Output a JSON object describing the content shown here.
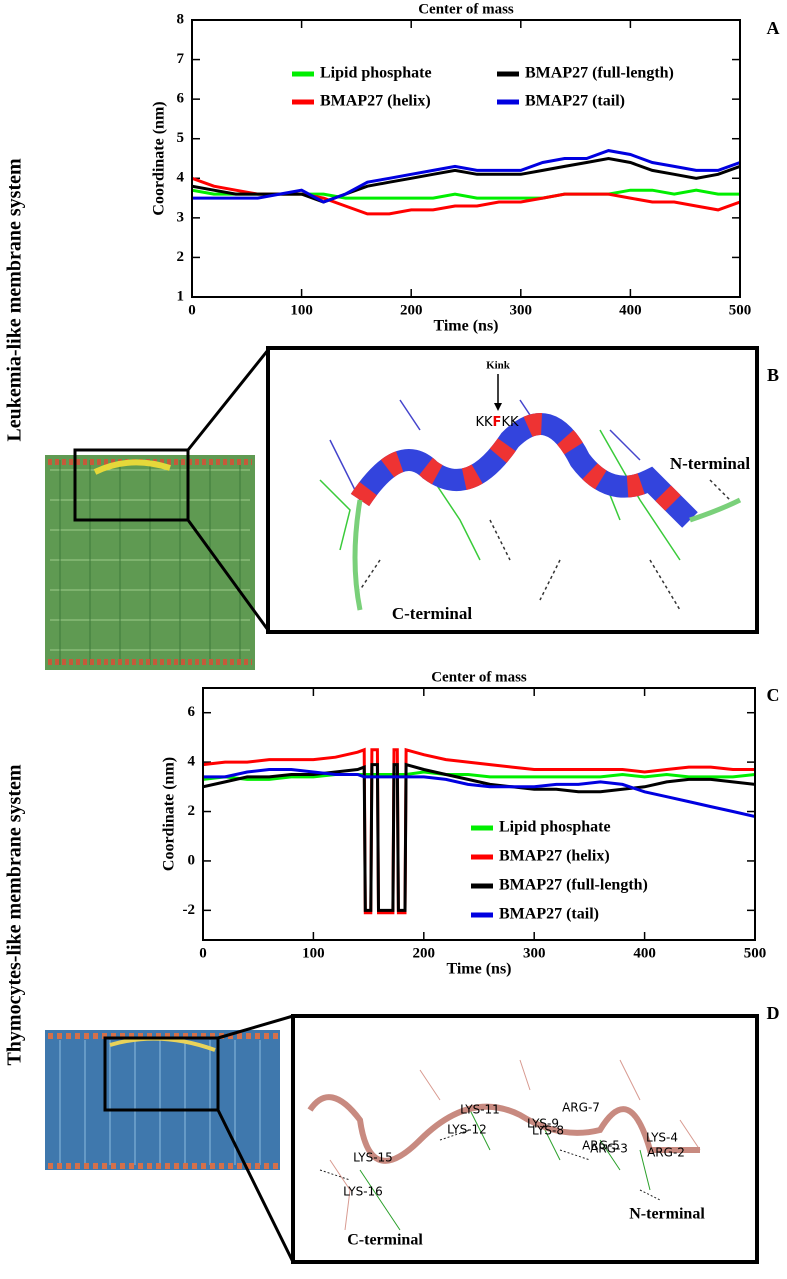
{
  "chart_data": [
    {
      "type": "line",
      "title": "Center of mass",
      "xlabel": "Time (ns)",
      "ylabel": "Coordinate (nm)",
      "panel": "A",
      "xlim": [
        0,
        500
      ],
      "xticks": [
        0,
        100,
        200,
        300,
        400,
        500
      ],
      "ylim": [
        1,
        8
      ],
      "yticks": [
        1,
        2,
        3,
        4,
        5,
        6,
        7,
        8
      ],
      "legend": "upper center",
      "x": [
        0,
        20,
        40,
        60,
        80,
        100,
        120,
        140,
        160,
        180,
        200,
        220,
        240,
        260,
        280,
        300,
        320,
        340,
        360,
        380,
        400,
        420,
        440,
        460,
        480,
        500
      ],
      "series": [
        {
          "name": "Lipid phosphate",
          "color": "#00ee00",
          "values": [
            3.7,
            3.6,
            3.6,
            3.6,
            3.6,
            3.6,
            3.6,
            3.5,
            3.5,
            3.5,
            3.5,
            3.5,
            3.6,
            3.5,
            3.5,
            3.5,
            3.5,
            3.6,
            3.6,
            3.6,
            3.7,
            3.7,
            3.6,
            3.7,
            3.6,
            3.6
          ]
        },
        {
          "name": "BMAP27 (helix)",
          "color": "#ff0000",
          "values": [
            4.0,
            3.8,
            3.7,
            3.6,
            3.6,
            3.6,
            3.5,
            3.3,
            3.1,
            3.1,
            3.2,
            3.2,
            3.3,
            3.3,
            3.4,
            3.4,
            3.5,
            3.6,
            3.6,
            3.6,
            3.5,
            3.4,
            3.4,
            3.3,
            3.2,
            3.4
          ]
        },
        {
          "name": "BMAP27 (full-length)",
          "color": "#000000",
          "values": [
            3.8,
            3.7,
            3.6,
            3.6,
            3.6,
            3.6,
            3.4,
            3.6,
            3.8,
            3.9,
            4.0,
            4.1,
            4.2,
            4.1,
            4.1,
            4.1,
            4.2,
            4.3,
            4.4,
            4.5,
            4.4,
            4.2,
            4.1,
            4.0,
            4.1,
            4.3
          ]
        },
        {
          "name": "BMAP27 (tail)",
          "color": "#0000e0",
          "values": [
            3.5,
            3.5,
            3.5,
            3.5,
            3.6,
            3.7,
            3.4,
            3.6,
            3.9,
            4.0,
            4.1,
            4.2,
            4.3,
            4.2,
            4.2,
            4.2,
            4.4,
            4.5,
            4.5,
            4.7,
            4.6,
            4.4,
            4.3,
            4.2,
            4.2,
            4.4
          ]
        }
      ]
    },
    {
      "type": "line",
      "title": "Center of mass",
      "xlabel": "Time (ns)",
      "ylabel": "Coordinate (nm)",
      "panel": "C",
      "xlim": [
        0,
        500
      ],
      "xticks": [
        0,
        100,
        200,
        300,
        400,
        500
      ],
      "ylim": [
        -3.2,
        7
      ],
      "yticks": [
        -2,
        0,
        2,
        4,
        6
      ],
      "legend": "lower center",
      "x": [
        0,
        20,
        40,
        60,
        80,
        100,
        120,
        140,
        146,
        147,
        152,
        153,
        158,
        159,
        172,
        173,
        176,
        177,
        183,
        184,
        200,
        220,
        240,
        260,
        280,
        300,
        320,
        340,
        360,
        380,
        400,
        420,
        440,
        460,
        480,
        500
      ],
      "series": [
        {
          "name": "Lipid phosphate",
          "color": "#00ee00",
          "values": [
            3.3,
            3.4,
            3.3,
            3.3,
            3.4,
            3.4,
            3.5,
            3.5,
            3.5,
            3.5,
            3.5,
            3.5,
            3.5,
            3.5,
            3.5,
            3.5,
            3.5,
            3.5,
            3.5,
            3.5,
            3.6,
            3.5,
            3.5,
            3.4,
            3.4,
            3.4,
            3.4,
            3.4,
            3.4,
            3.5,
            3.4,
            3.5,
            3.4,
            3.4,
            3.4,
            3.5
          ]
        },
        {
          "name": "BMAP27 (helix)",
          "color": "#ff0000",
          "values": [
            3.9,
            4.0,
            4.0,
            4.1,
            4.1,
            4.1,
            4.2,
            4.4,
            4.5,
            -2.1,
            -2.1,
            4.5,
            4.5,
            -2.1,
            -2.1,
            4.5,
            4.5,
            -2.1,
            -2.1,
            4.5,
            4.3,
            4.1,
            4.0,
            3.9,
            3.8,
            3.7,
            3.7,
            3.7,
            3.7,
            3.7,
            3.6,
            3.7,
            3.8,
            3.8,
            3.7,
            3.7
          ]
        },
        {
          "name": "BMAP27 (full-length)",
          "color": "#000000",
          "values": [
            3.0,
            3.2,
            3.4,
            3.4,
            3.5,
            3.5,
            3.6,
            3.7,
            3.8,
            -2.0,
            -2.0,
            3.9,
            3.9,
            -2.0,
            -2.0,
            3.9,
            3.9,
            -2.0,
            -2.0,
            3.9,
            3.7,
            3.5,
            3.3,
            3.1,
            3.0,
            2.9,
            2.9,
            2.8,
            2.8,
            2.9,
            3.0,
            3.2,
            3.3,
            3.3,
            3.2,
            3.1
          ]
        },
        {
          "name": "BMAP27 (tail)",
          "color": "#0000e0",
          "values": [
            3.4,
            3.4,
            3.6,
            3.7,
            3.7,
            3.6,
            3.5,
            3.5,
            3.4,
            3.4,
            3.4,
            3.4,
            3.4,
            3.4,
            3.4,
            3.4,
            3.4,
            3.4,
            3.4,
            3.4,
            3.4,
            3.3,
            3.1,
            3.0,
            3.0,
            3.0,
            3.1,
            3.1,
            3.2,
            3.1,
            2.8,
            2.6,
            2.4,
            2.2,
            2.0,
            1.8
          ]
        }
      ]
    }
  ],
  "figure": {
    "side_labels": [
      "Leukemia-like membrane system",
      "Thymocytes-like membrane system"
    ],
    "panel_b": {
      "panel": "B",
      "kink": "Kink",
      "sequence": [
        "KK",
        "F",
        "KK"
      ],
      "n_terminal": "N-terminal",
      "c_terminal": "C-terminal"
    },
    "panel_d": {
      "panel": "D",
      "residues": [
        "LYS-11",
        "LYS-12",
        "LYS-9",
        "LYS-8",
        "ARG-7",
        "ARG-5",
        "ARG-3",
        "LYS-4",
        "ARG-2",
        "LYS-15",
        "LYS-16"
      ],
      "n_terminal": "N-terminal",
      "c_terminal": "C-terminal"
    }
  }
}
